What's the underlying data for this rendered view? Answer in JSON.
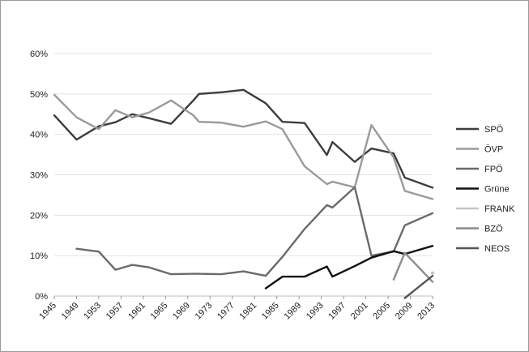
{
  "chart_data": {
    "type": "line",
    "title": "",
    "xlabel": "",
    "ylabel": "",
    "ylim": [
      0,
      0.6
    ],
    "xlim": [
      1945,
      2013
    ],
    "y_ticks": [
      {
        "value": 0.0,
        "label": "0%"
      },
      {
        "value": 0.1,
        "label": "10%"
      },
      {
        "value": 0.2,
        "label": "20%"
      },
      {
        "value": 0.3,
        "label": "30%"
      },
      {
        "value": 0.4,
        "label": "40%"
      },
      {
        "value": 0.5,
        "label": "50%"
      },
      {
        "value": 0.6,
        "label": "60%"
      }
    ],
    "x_ticks": [
      "1945",
      "1949",
      "1953",
      "1957",
      "1961",
      "1965",
      "1969",
      "1973",
      "1977",
      "1981",
      "1985",
      "1989",
      "1993",
      "1997",
      "2001",
      "2005",
      "2009",
      "2013"
    ],
    "grid": "horizontal",
    "legend_position": "right",
    "series": [
      {
        "name": "SPÖ",
        "color": "#3d3d3d",
        "x": [
          1945,
          1949,
          1953,
          1956,
          1959,
          1962,
          1966,
          1970,
          1971,
          1975,
          1979,
          1983,
          1986,
          1990,
          1994,
          1995,
          1999,
          2002,
          2006,
          2008,
          2013
        ],
        "y": [
          0.447,
          0.387,
          0.42,
          0.43,
          0.45,
          0.44,
          0.426,
          0.484,
          0.5,
          0.504,
          0.51,
          0.477,
          0.431,
          0.428,
          0.349,
          0.381,
          0.332,
          0.365,
          0.353,
          0.293,
          0.268
        ]
      },
      {
        "name": "ÖVP",
        "color": "#9a9a9a",
        "x": [
          1945,
          1949,
          1953,
          1956,
          1959,
          1962,
          1966,
          1970,
          1971,
          1975,
          1979,
          1983,
          1986,
          1990,
          1994,
          1995,
          1999,
          2002,
          2006,
          2008,
          2013
        ],
        "y": [
          0.498,
          0.442,
          0.413,
          0.46,
          0.442,
          0.454,
          0.484,
          0.447,
          0.431,
          0.429,
          0.419,
          0.432,
          0.413,
          0.321,
          0.277,
          0.283,
          0.269,
          0.423,
          0.343,
          0.26,
          0.24
        ]
      },
      {
        "name": "FPÖ",
        "color": "#6a6a6a",
        "x": [
          1949,
          1953,
          1956,
          1959,
          1962,
          1966,
          1970,
          1971,
          1975,
          1979,
          1983,
          1986,
          1990,
          1994,
          1995,
          1999,
          2002,
          2006,
          2008,
          2013
        ],
        "y": [
          0.117,
          0.11,
          0.065,
          0.077,
          0.071,
          0.054,
          0.055,
          0.055,
          0.054,
          0.061,
          0.05,
          0.097,
          0.166,
          0.225,
          0.219,
          0.269,
          0.1,
          0.11,
          0.175,
          0.205
        ]
      },
      {
        "name": "Grüne",
        "color": "#111111",
        "x": [
          1983,
          1986,
          1990,
          1994,
          1995,
          1999,
          2002,
          2006,
          2008,
          2013
        ],
        "y": [
          0.019,
          0.048,
          0.048,
          0.073,
          0.048,
          0.074,
          0.095,
          0.111,
          0.104,
          0.124
        ]
      },
      {
        "name": "FRANK",
        "color": "#c4c4c4",
        "x": [
          2013
        ],
        "y": [
          0.057
        ]
      },
      {
        "name": "BZÖ",
        "color": "#8c8c8c",
        "x": [
          2006,
          2008,
          2013
        ],
        "y": [
          0.041,
          0.107,
          0.035
        ]
      },
      {
        "name": "NEOS",
        "color": "#555555",
        "x": [
          2008,
          2013
        ],
        "y": [
          -0.005,
          0.05
        ]
      }
    ]
  }
}
